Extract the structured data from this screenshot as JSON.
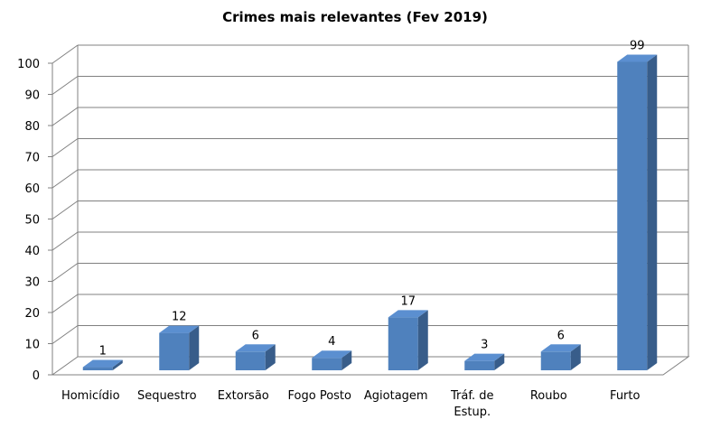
{
  "chart_data": {
    "type": "bar",
    "title": "Crimes mais relevantes (Fev 2019)",
    "xlabel": "",
    "ylabel": "",
    "categories": [
      "Homicídio",
      "Sequestro",
      "Extorsão",
      "Fogo Posto",
      "Agiotagem",
      "Tráf. de Estup.",
      "Roubo",
      "Furto"
    ],
    "category_lines": [
      [
        "Homicídio"
      ],
      [
        "Sequestro"
      ],
      [
        "Extorsão"
      ],
      [
        "Fogo Posto"
      ],
      [
        "Agiotagem"
      ],
      [
        "Tráf. de",
        "Estup."
      ],
      [
        "Roubo"
      ],
      [
        "Furto"
      ]
    ],
    "values": [
      1,
      12,
      6,
      4,
      17,
      3,
      6,
      99
    ],
    "ylim": [
      0,
      100
    ],
    "yticks": [
      0,
      10,
      20,
      30,
      40,
      50,
      60,
      70,
      80,
      90,
      100
    ],
    "grid": true,
    "three_d": true,
    "data_labels": true,
    "bar_color": "#4F81BD",
    "bar_side_color": "#385D8A",
    "bar_top_color": "#5B8FD0"
  }
}
